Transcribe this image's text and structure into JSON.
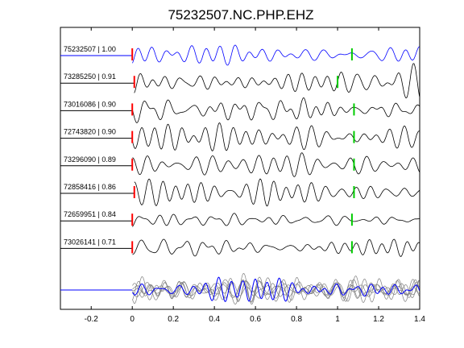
{
  "chart_data": {
    "type": "line",
    "title": "75232507.NC.PHP.EHZ",
    "xlabel": "",
    "ylabel": "",
    "xlim": [
      -0.35,
      1.4
    ],
    "xticks": [
      -0.2,
      0,
      0.2,
      0.4,
      0.6,
      0.8,
      1,
      1.2,
      1.4
    ],
    "xtick_labels": [
      "-0.2",
      "0",
      "0.2",
      "0.4",
      "0.6",
      "0.8",
      "1",
      "1.2",
      "1.4"
    ],
    "grid": false,
    "colors": {
      "reference": "#0000ff",
      "trace": "#000000",
      "stack_overlay": "#808080",
      "p_pick": "#ff0000",
      "s_pick": "#00cc00"
    },
    "traces": [
      {
        "label": "75232507 | 1.00",
        "id": "75232507",
        "cc": 1.0,
        "p_time": 0.0,
        "s_time": 1.07,
        "color": "#0000ff"
      },
      {
        "label": "73285250 | 0.91",
        "id": "73285250",
        "cc": 0.91,
        "p_time": 0.01,
        "s_time": 1.0,
        "color": "#000000"
      },
      {
        "label": "73016086 | 0.90",
        "id": "73016086",
        "cc": 0.9,
        "p_time": 0.0,
        "s_time": 1.08,
        "color": "#000000"
      },
      {
        "label": "72743820 | 0.90",
        "id": "72743820",
        "cc": 0.9,
        "p_time": 0.0,
        "s_time": 1.08,
        "color": "#000000"
      },
      {
        "label": "73296090 | 0.89",
        "id": "73296090",
        "cc": 0.89,
        "p_time": 0.0,
        "s_time": 1.08,
        "color": "#000000"
      },
      {
        "label": "72858416 | 0.86",
        "id": "72858416",
        "cc": 0.86,
        "p_time": 0.01,
        "s_time": 1.08,
        "color": "#000000"
      },
      {
        "label": "72659951 | 0.84",
        "id": "72659951",
        "cc": 0.84,
        "p_time": 0.0,
        "s_time": 1.07,
        "color": "#000000"
      },
      {
        "label": "73026141 | 0.71",
        "id": "73026141",
        "cc": 0.71,
        "p_time": 0.0,
        "s_time": 1.07,
        "color": "#000000"
      }
    ],
    "stack": {
      "label": "",
      "reference_color": "#0000ff",
      "overlay_color": "#808080",
      "overlay_count": 7
    },
    "waveform_start": 0.0
  }
}
